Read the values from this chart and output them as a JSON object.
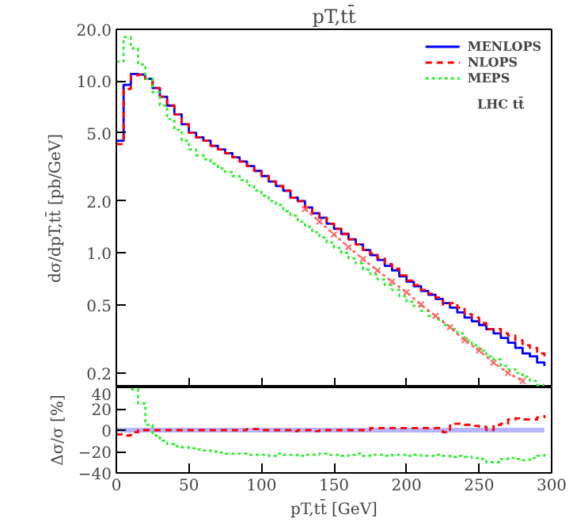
{
  "chart_data": [
    {
      "type": "step",
      "title": "pT,tt̄",
      "ylabel": "dσ/dpT,tt̄ [pb/GeV]",
      "log": "y",
      "legend": "top right",
      "tick_labels": "y",
      "annotations": [
        "LHC tt̄"
      ],
      "xlim": [
        0,
        300
      ],
      "ylim": [
        0.165,
        20
      ],
      "xticks": [
        {
          "value": 0,
          "label": null
        },
        {
          "value": 50,
          "label": null
        },
        {
          "value": 100,
          "label": null
        },
        {
          "value": 150,
          "label": null
        },
        {
          "value": 200,
          "label": null
        },
        {
          "value": 250,
          "label": null
        },
        {
          "value": 300,
          "label": null
        }
      ],
      "yticks": [
        {
          "value": 0.2,
          "label": "0.2"
        },
        {
          "value": 0.5,
          "label": "0.5"
        },
        {
          "value": 1,
          "label": "1.0"
        },
        {
          "value": 2,
          "label": "2.0"
        },
        {
          "value": 5,
          "label": "5.0"
        },
        {
          "value": 10,
          "label": "10.0"
        },
        {
          "value": 20,
          "label": "20.0"
        }
      ],
      "x": [
        0,
        5,
        10,
        15,
        20,
        25,
        30,
        35,
        40,
        45,
        50,
        55,
        60,
        65,
        70,
        75,
        80,
        85,
        90,
        95,
        100,
        105,
        110,
        115,
        120,
        125,
        130,
        135,
        140,
        145,
        150,
        155,
        160,
        165,
        170,
        175,
        180,
        185,
        190,
        195,
        200,
        205,
        210,
        215,
        220,
        225,
        230,
        235,
        240,
        245,
        250,
        255,
        260,
        265,
        270,
        275,
        280,
        285,
        290,
        295
      ],
      "series": [
        {
          "name": "MENLOPS",
          "color": "#0000ff",
          "line_style": "solid",
          "values": [
            4.5,
            9.5,
            11.0,
            10.9,
            10.3,
            9.1,
            8.1,
            7.2,
            6.4,
            5.6,
            5.0,
            4.7,
            4.5,
            4.2,
            4.0,
            3.8,
            3.6,
            3.4,
            3.2,
            3.0,
            2.8,
            2.6,
            2.45,
            2.3,
            2.1,
            2.0,
            1.84,
            1.7,
            1.6,
            1.48,
            1.38,
            1.29,
            1.2,
            1.12,
            1.04,
            0.97,
            0.91,
            0.84,
            0.79,
            0.73,
            0.68,
            0.64,
            0.6,
            0.57,
            0.54,
            0.51,
            0.48,
            0.45,
            0.42,
            0.4,
            0.38,
            0.36,
            0.34,
            0.32,
            0.3,
            0.28,
            0.26,
            0.25,
            0.23,
            0.22
          ]
        },
        {
          "name": "NLOPS",
          "color": "#ff0000",
          "line_style": "dashed",
          "values": [
            4.3,
            9.0,
            10.8,
            10.9,
            10.3,
            9.1,
            8.1,
            7.2,
            6.4,
            5.6,
            5.0,
            4.7,
            4.5,
            4.2,
            4.0,
            3.8,
            3.6,
            3.4,
            3.2,
            3.0,
            2.8,
            2.6,
            2.45,
            2.3,
            2.1,
            2.0,
            1.84,
            1.7,
            1.6,
            1.48,
            1.38,
            1.29,
            1.2,
            1.12,
            1.04,
            0.99,
            0.93,
            0.86,
            0.81,
            0.74,
            0.69,
            0.65,
            0.61,
            0.58,
            0.55,
            0.5,
            0.51,
            0.48,
            0.44,
            0.42,
            0.39,
            0.36,
            0.36,
            0.34,
            0.33,
            0.31,
            0.29,
            0.28,
            0.26,
            0.25
          ]
        },
        {
          "name": "MEPS",
          "color": "#33ee33",
          "line_style": "dotted",
          "values": [
            13,
            18,
            15.5,
            12.5,
            10.3,
            8.6,
            7.2,
            6.0,
            5.2,
            4.5,
            4.0,
            3.7,
            3.5,
            3.3,
            3.1,
            2.95,
            2.8,
            2.65,
            2.47,
            2.3,
            2.15,
            2.0,
            1.9,
            1.75,
            1.65,
            1.52,
            1.42,
            1.32,
            1.23,
            1.15,
            1.07,
            1.0,
            0.93,
            0.87,
            0.8,
            0.75,
            0.7,
            0.65,
            0.61,
            0.56,
            0.52,
            0.49,
            0.46,
            0.43,
            0.41,
            0.38,
            0.36,
            0.34,
            0.31,
            0.29,
            0.27,
            0.25,
            0.24,
            0.22,
            0.21,
            0.2,
            0.19,
            0.18,
            0.17,
            0.17
          ]
        },
        {
          "type": "line",
          "color": "#ff6666",
          "line_style": "dotted",
          "marker": "cross",
          "x": [
            130,
            140,
            150,
            160,
            170,
            180,
            190,
            200,
            210,
            220,
            230,
            240,
            250,
            260,
            270,
            280
          ],
          "values": [
            1.8,
            1.52,
            1.28,
            1.08,
            0.92,
            0.79,
            0.68,
            0.59,
            0.5,
            0.43,
            0.37,
            0.31,
            0.27,
            0.23,
            0.2,
            0.18
          ]
        }
      ]
    },
    {
      "type": "step",
      "xlabel": "pT,tt̄ [GeV]",
      "ylabel": "Δσ/σ [%]",
      "xlim": [
        0,
        300
      ],
      "ylim": [
        -40,
        40
      ],
      "xticks": [
        0,
        50,
        100,
        150,
        200,
        250,
        300
      ],
      "yticks": [
        -40,
        -20,
        0,
        20,
        40
      ],
      "x": [
        0,
        5,
        10,
        15,
        20,
        25,
        30,
        35,
        40,
        45,
        50,
        55,
        60,
        65,
        70,
        75,
        80,
        85,
        90,
        95,
        100,
        105,
        110,
        115,
        120,
        125,
        130,
        135,
        140,
        145,
        150,
        155,
        160,
        165,
        170,
        175,
        180,
        185,
        190,
        195,
        200,
        205,
        210,
        215,
        220,
        225,
        230,
        235,
        240,
        245,
        250,
        255,
        260,
        265,
        270,
        275,
        280,
        285,
        290,
        295
      ],
      "series": [
        {
          "color": "#b4b4ff",
          "line_style": "solid",
          "values": [
            0,
            0,
            0,
            0,
            0,
            0,
            0,
            0,
            0,
            0,
            0,
            0,
            0,
            0,
            0,
            0,
            0,
            0,
            0,
            0,
            0,
            0,
            0,
            0,
            0,
            0,
            0,
            0,
            0,
            0,
            0,
            0,
            0,
            0,
            0,
            0,
            0,
            0,
            0,
            0,
            0,
            0,
            0,
            0,
            0,
            0,
            0,
            0,
            0,
            0,
            0,
            0,
            0,
            0,
            0,
            0,
            0,
            0,
            0,
            0
          ]
        },
        {
          "color": "#ff0000",
          "line_style": "dashed",
          "values": [
            -4,
            -5,
            -2,
            0,
            0,
            0,
            0,
            0,
            0,
            0,
            0,
            0,
            0,
            0,
            0,
            0,
            0,
            0,
            1,
            1,
            0,
            0,
            0,
            0,
            -1,
            0,
            0,
            -1,
            0,
            0,
            0,
            0,
            0,
            0,
            0,
            2,
            2,
            2,
            2,
            2,
            2,
            2,
            2,
            2,
            2,
            -2,
            6,
            6,
            5,
            4,
            3,
            0,
            5,
            6,
            10,
            11,
            10,
            10,
            12,
            14
          ]
        },
        {
          "color": "#33ee33",
          "line_style": "dotted",
          "values": [
            null,
            null,
            38,
            25,
            5,
            -5,
            -10,
            -13,
            -15,
            -16,
            -17,
            -18,
            -19,
            -20,
            -21,
            -22,
            -22,
            -22,
            -23,
            -23,
            -23,
            -24,
            -22,
            -23,
            -23,
            -24,
            -23,
            -23,
            -22,
            -23,
            -23,
            -24,
            -23,
            -22,
            -24,
            -23,
            -23,
            -24,
            -23,
            -23,
            -24,
            -23,
            -24,
            -24,
            -23,
            -24,
            -25,
            -24,
            -25,
            -26,
            -27,
            -30,
            -30,
            -27,
            -26,
            -27,
            -28,
            -26,
            -24,
            -22
          ]
        }
      ]
    }
  ]
}
